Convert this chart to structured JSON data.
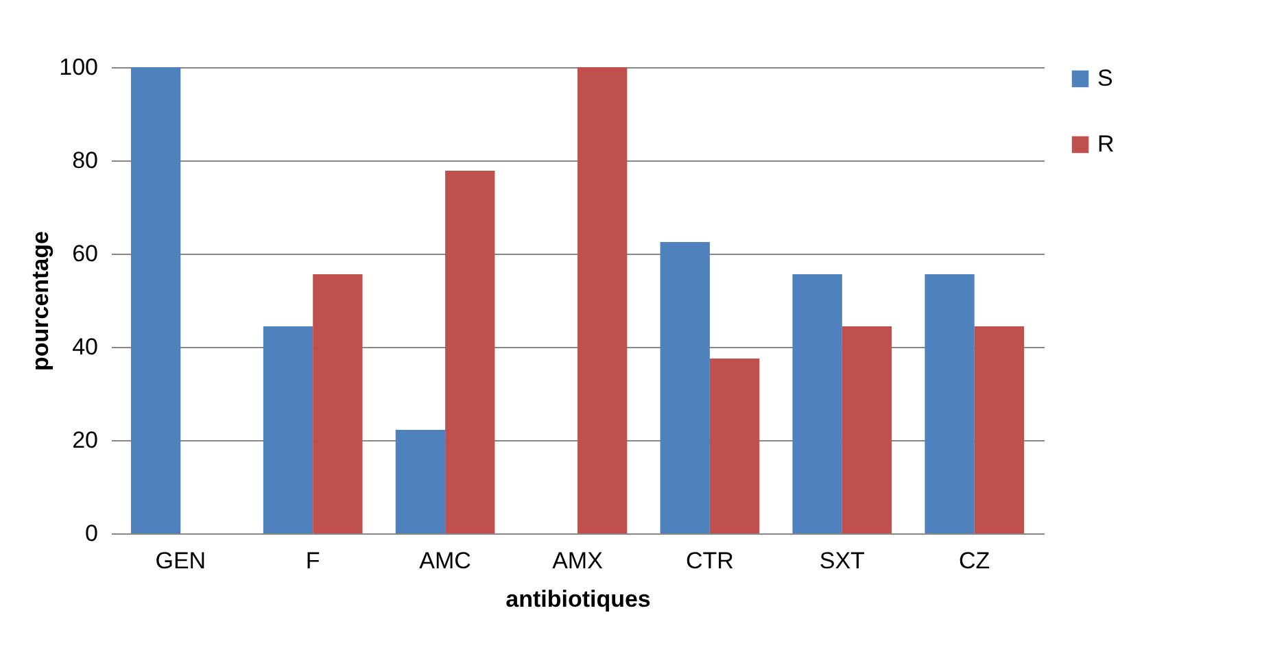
{
  "chart_data": {
    "type": "bar",
    "xlabel": "antibiotiques",
    "ylabel": "pourcentage",
    "categories": [
      "GEN",
      "F",
      "AMC",
      "AMX",
      "CTR",
      "SXT",
      "CZ"
    ],
    "series": [
      {
        "name": "S",
        "color": "#4f81bd",
        "values": [
          100,
          44.4,
          22.2,
          0,
          62.5,
          55.6,
          55.6
        ]
      },
      {
        "name": "R",
        "color": "#c0504d",
        "values": [
          0,
          55.6,
          77.8,
          100,
          37.5,
          44.4,
          44.4
        ]
      }
    ],
    "ylim": [
      0,
      100
    ],
    "yticks": [
      0,
      20,
      40,
      60,
      80,
      100
    ],
    "grid": "y",
    "legend": "right"
  }
}
